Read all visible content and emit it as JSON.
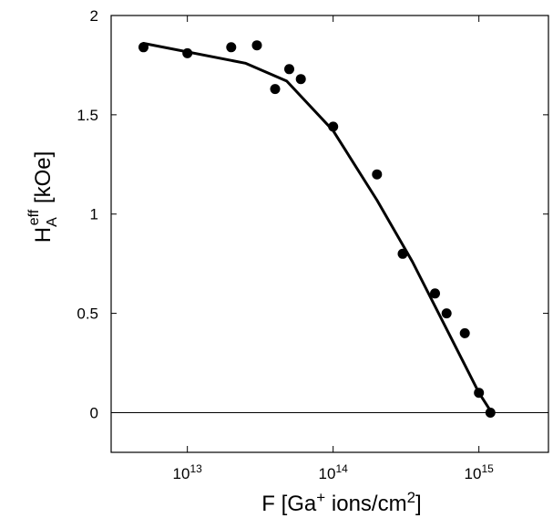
{
  "chart_data": {
    "type": "scatter",
    "xscale": "log",
    "xlim": [
      3000000000000,
      3000000000000000
    ],
    "ylim": [
      -0.2,
      2.0
    ],
    "grid": false,
    "xlabel": {
      "main": "F [Ga",
      "sup1": "+",
      "mid": " ions/cm",
      "sup2": "2",
      "end": "]"
    },
    "ylabel": {
      "main": "H",
      "sub": "A",
      "sup": "eff",
      "unit": " [kOe]"
    },
    "x_ticks": [
      {
        "value": 10000000000000,
        "base": "10",
        "exp": "13"
      },
      {
        "value": 100000000000000,
        "base": "10",
        "exp": "14"
      },
      {
        "value": 1000000000000000,
        "base": "10",
        "exp": "15"
      }
    ],
    "y_ticks": [
      {
        "value": 0,
        "label": "0"
      },
      {
        "value": 0.5,
        "label": "0.5"
      },
      {
        "value": 1,
        "label": "1"
      },
      {
        "value": 1.5,
        "label": "1.5"
      },
      {
        "value": 2,
        "label": "2"
      }
    ],
    "reference_line_y": 0,
    "series": [
      {
        "kind": "points",
        "color": "#000000",
        "x": [
          5000000000000,
          10000000000000,
          20000000000000,
          30000000000000,
          40000000000000,
          50000000000000,
          60000000000000,
          100000000000000,
          200000000000000,
          300000000000000,
          500000000000000,
          600000000000000,
          800000000000000,
          1000000000000000,
          1200000000000000
        ],
        "y": [
          1.84,
          1.81,
          1.84,
          1.85,
          1.63,
          1.73,
          1.68,
          1.44,
          1.2,
          0.8,
          0.6,
          0.5,
          0.4,
          0.1,
          0.0
        ]
      },
      {
        "kind": "line",
        "color": "#000000",
        "x": [
          5000000000000,
          25000000000000,
          48000000000000,
          100000000000000,
          200000000000000,
          350000000000000,
          1000000000000000,
          1200000000000000
        ],
        "y": [
          1.86,
          1.76,
          1.67,
          1.42,
          1.07,
          0.76,
          0.1,
          0.01
        ]
      }
    ]
  }
}
